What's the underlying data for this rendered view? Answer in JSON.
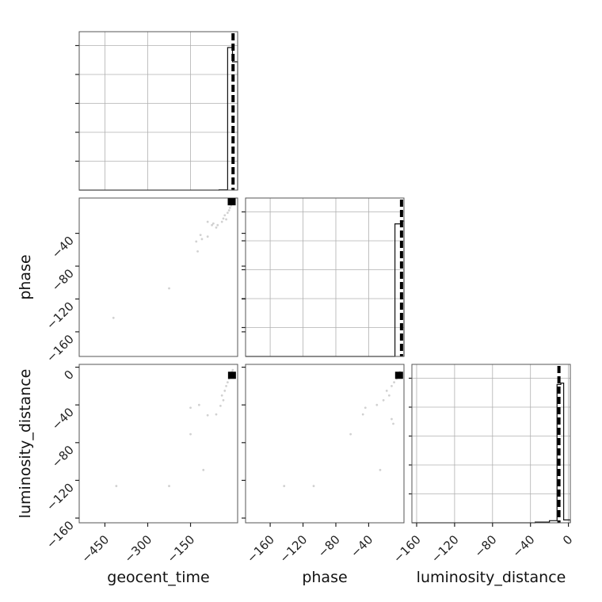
{
  "chart_data": {
    "type": "corner",
    "parameters": [
      "geocent_time",
      "phase",
      "luminosity_distance"
    ],
    "grid": true,
    "histograms": [
      {
        "parameter": "geocent_time",
        "xlim": [
          -540,
          15
        ],
        "bins": [
          {
            "x0": -540,
            "x1": -50,
            "count": 0
          },
          {
            "x0": -50,
            "x1": -20,
            "count": 0.002
          },
          {
            "x0": -20,
            "x1": -3,
            "count": 1.0
          },
          {
            "x0": -3,
            "x1": 15,
            "count": 0.9
          }
        ],
        "marker": -1
      },
      {
        "parameter": "phase",
        "xlim": [
          -190,
          3
        ],
        "bins": [
          {
            "x0": -190,
            "x1": -8,
            "count": 0
          },
          {
            "x0": -8,
            "x1": 0,
            "count": 0.93
          },
          {
            "x0": 0,
            "x1": 3,
            "count": 0.95
          }
        ],
        "marker": 0
      },
      {
        "parameter": "luminosity_distance",
        "xlim": [
          -165,
          2
        ],
        "bins": [
          {
            "x0": -165,
            "x1": -35,
            "count": 0
          },
          {
            "x0": -35,
            "x1": -20,
            "count": 0.005
          },
          {
            "x0": -20,
            "x1": -12,
            "count": 0.015
          },
          {
            "x0": -12,
            "x1": -8,
            "count": 0.97
          },
          {
            "x0": -8,
            "x1": -5,
            "count": 0.98
          },
          {
            "x0": -5,
            "x1": 2,
            "count": 0.02
          }
        ],
        "marker": -10
      }
    ],
    "scatter_panels": [
      {
        "x": "geocent_time",
        "y": "phase",
        "xlim": [
          -540,
          15
        ],
        "ylim": [
          -190,
          3
        ],
        "points": [
          [
            -420,
            -143
          ],
          [
            -225,
            -107
          ],
          [
            -130,
            -50
          ],
          [
            -125,
            -62
          ],
          [
            -115,
            -42
          ],
          [
            -110,
            -47
          ],
          [
            -90,
            -44
          ],
          [
            -90,
            -26
          ],
          [
            -75,
            -30
          ],
          [
            -70,
            -28
          ],
          [
            -60,
            -33
          ],
          [
            -55,
            -30
          ],
          [
            -40,
            -26
          ],
          [
            -35,
            -22
          ],
          [
            -30,
            -18
          ],
          [
            -25,
            -23
          ],
          [
            -20,
            -15
          ],
          [
            -15,
            -12
          ],
          [
            -12,
            -9
          ],
          [
            -8,
            -6
          ],
          [
            -5,
            -4
          ],
          [
            -3,
            -2
          ]
        ],
        "core": [
          -3,
          -2
        ]
      },
      {
        "x": "geocent_time",
        "y": "luminosity_distance",
        "xlim": [
          -540,
          15
        ],
        "ylim": [
          -165,
          3
        ],
        "points": [
          [
            -410,
            -126
          ],
          [
            -225,
            -126
          ],
          [
            -105,
            -109
          ],
          [
            -150,
            -71
          ],
          [
            -150,
            -43
          ],
          [
            -120,
            -40
          ],
          [
            -90,
            -51
          ],
          [
            -60,
            -50
          ],
          [
            -45,
            -41
          ],
          [
            -35,
            -35
          ],
          [
            -40,
            -30
          ],
          [
            -30,
            -25
          ],
          [
            -25,
            -20
          ],
          [
            -20,
            -16
          ],
          [
            -15,
            -12
          ],
          [
            -10,
            -8
          ],
          [
            -5,
            -5
          ],
          [
            -2,
            -3
          ]
        ],
        "core": [
          -2,
          -9
        ]
      },
      {
        "x": "phase",
        "y": "luminosity_distance",
        "xlim": [
          -190,
          3
        ],
        "ylim": [
          -165,
          3
        ],
        "points": [
          [
            -143,
            -126
          ],
          [
            -107,
            -126
          ],
          [
            -26,
            -109
          ],
          [
            -62,
            -71
          ],
          [
            -44,
            -43
          ],
          [
            -47,
            -50
          ],
          [
            -30,
            -40
          ],
          [
            -22,
            -35
          ],
          [
            -15,
            -30
          ],
          [
            -18,
            -25
          ],
          [
            -12,
            -20
          ],
          [
            -9,
            -16
          ],
          [
            -6,
            -12
          ],
          [
            -4,
            -8
          ],
          [
            -2,
            -5
          ],
          [
            -10,
            -60
          ],
          [
            -12,
            -55
          ]
        ],
        "core": [
          -2,
          -9
        ]
      }
    ],
    "x_tick_labels": {
      "geocent_time": [
        "−450",
        "−300",
        "−150"
      ],
      "phase": [
        "−160",
        "−120",
        "−80",
        "−40"
      ],
      "luminosity_distance": [
        "−160",
        "−120",
        "−80",
        "−40",
        "0"
      ]
    },
    "y_tick_labels": {
      "phase": [
        "−40",
        "−80",
        "−120",
        "−160"
      ],
      "luminosity_distance": [
        "0",
        "−40",
        "−80",
        "−120",
        "−160"
      ]
    },
    "x_ticks": {
      "geocent_time": [
        -450,
        -300,
        -150
      ],
      "phase": [
        -160,
        -120,
        -80,
        -40
      ],
      "luminosity_distance": [
        -160,
        -120,
        -80,
        -40,
        0
      ]
    },
    "y_ticks": {
      "phase": [
        -40,
        -80,
        -120,
        -160
      ],
      "luminosity_distance": [
        0,
        -40,
        -80,
        -120,
        -160
      ]
    },
    "xlabels": [
      "geocent_time",
      "phase",
      "luminosity_distance"
    ],
    "ylabels": [
      "",
      "phase",
      "luminosity_distance"
    ]
  }
}
